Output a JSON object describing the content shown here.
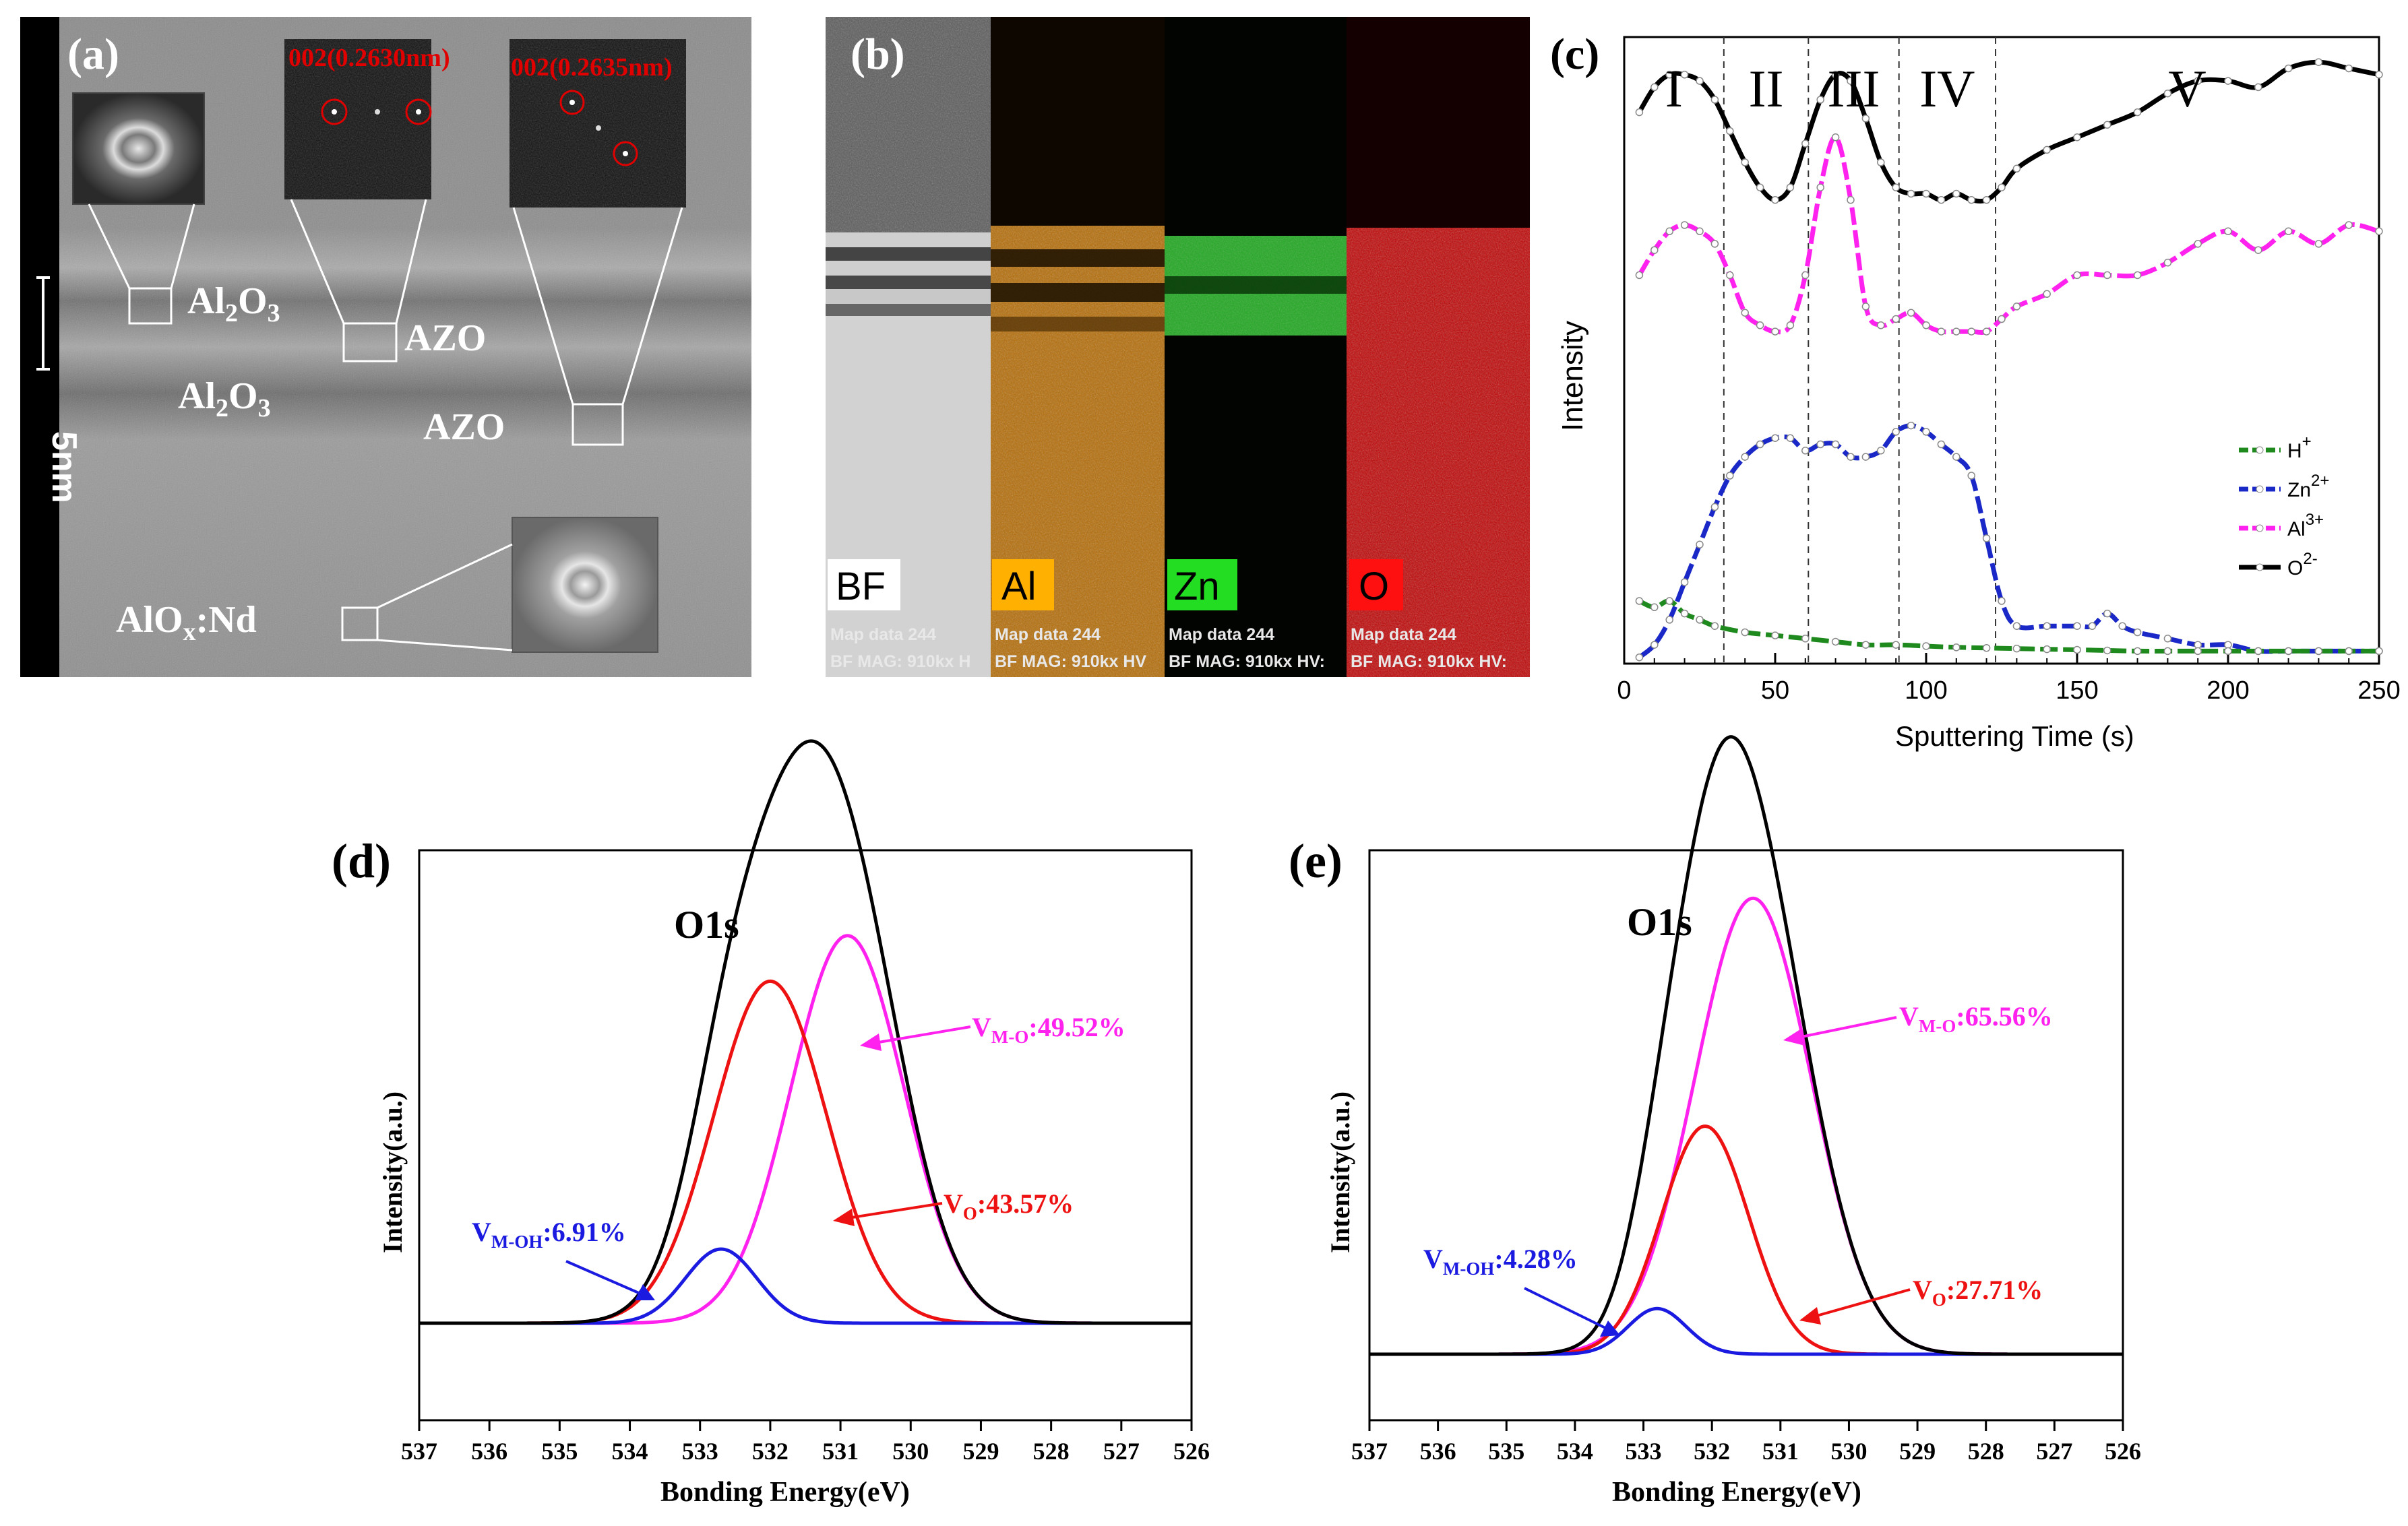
{
  "panel_a": {
    "label": "(a)",
    "scale_bar": "5nm",
    "fft_labels": [
      "002(0.2630nm)",
      "002(0.2635nm)"
    ],
    "layer_labels": {
      "al2o3_top": {
        "base": "Al",
        "sub1": "2",
        "mid": "O",
        "sub2": "3"
      },
      "al2o3_mid": {
        "base": "Al",
        "sub1": "2",
        "mid": "O",
        "sub2": "3"
      },
      "azo_top": "AZO",
      "azo_bottom": "AZO",
      "alox": {
        "base": "AlO",
        "sub": "x",
        "rest": ":Nd"
      }
    }
  },
  "panel_b": {
    "label": "(b)",
    "maps": [
      {
        "name": "BF",
        "caption1": "Map data 244",
        "caption2": "BF  MAG: 910kx  H",
        "color": "#bdbdbd"
      },
      {
        "name": "Al",
        "caption1": "Map data 244",
        "caption2": "BF  MAG: 910kx  HV",
        "color": "#c87400"
      },
      {
        "name": "Zn",
        "caption1": "Map data 244",
        "caption2": "BF  MAG: 910kx  HV:",
        "color": "#18c018"
      },
      {
        "name": "O",
        "caption1": "Map data 244",
        "caption2": "BF  MAG: 910kx  HV:",
        "color": "#d80000"
      }
    ]
  },
  "panel_c": {
    "label": "(c)",
    "regions": [
      "I",
      "II",
      "III",
      "IV",
      "V"
    ],
    "region_boundaries": [
      33,
      61,
      91,
      123
    ],
    "xlabel": "Sputtering Time (s)",
    "ylabel": "Intensity",
    "legend": [
      {
        "base": "H",
        "sup": "+",
        "color": "#1e8a1e"
      },
      {
        "base": "Zn",
        "sup": "2+",
        "color": "#1a28c8"
      },
      {
        "base": "Al",
        "sup": "3+",
        "color": "#ff22ee"
      },
      {
        "base": "O",
        "sup": "2-",
        "color": "#000000"
      }
    ]
  },
  "panel_d": {
    "label": "(d)",
    "peak_label": "O1s",
    "ylabel": "Intensity(a.u.)",
    "xlabel": "Bonding Energy(eV)",
    "annotations": [
      {
        "main": "V",
        "sub": "M-O",
        "value": ":49.52%",
        "color": "#ff22ee"
      },
      {
        "main": "V",
        "sub": "O",
        "value": ":43.57%",
        "color": "#ee1111"
      },
      {
        "main": "V",
        "sub": "M-OH",
        "value": ":6.91%",
        "color": "#1a1ae0"
      }
    ]
  },
  "panel_e": {
    "label": "(e)",
    "peak_label": "O1s",
    "ylabel": "Intensity(a.u.)",
    "xlabel": "Bonding Energy(eV)",
    "annotations": [
      {
        "main": "V",
        "sub": "M-O",
        "value": ":65.56%",
        "color": "#ff22ee"
      },
      {
        "main": "V",
        "sub": "O",
        "value": ":27.71%",
        "color": "#ee1111"
      },
      {
        "main": "V",
        "sub": "M-OH",
        "value": ":4.28%",
        "color": "#1a1ae0"
      }
    ]
  },
  "chart_data": [
    {
      "type": "line",
      "panel": "c",
      "xlabel": "Sputtering Time (s)",
      "ylabel": "Intensity",
      "xlim": [
        0,
        250
      ],
      "xticks": [
        0,
        50,
        100,
        150,
        200,
        250
      ],
      "ylim": [
        0,
        1
      ],
      "series": [
        {
          "name": "O2-",
          "color": "#000000",
          "x": [
            5,
            10,
            15,
            20,
            25,
            30,
            35,
            40,
            45,
            50,
            55,
            60,
            65,
            70,
            75,
            80,
            85,
            90,
            95,
            100,
            105,
            110,
            115,
            120,
            125,
            130,
            140,
            150,
            160,
            170,
            180,
            190,
            200,
            210,
            220,
            230,
            240,
            250
          ],
          "y": [
            0.88,
            0.92,
            0.94,
            0.94,
            0.93,
            0.9,
            0.85,
            0.8,
            0.76,
            0.74,
            0.76,
            0.83,
            0.9,
            0.94,
            0.93,
            0.87,
            0.8,
            0.76,
            0.75,
            0.75,
            0.74,
            0.75,
            0.74,
            0.74,
            0.76,
            0.79,
            0.82,
            0.84,
            0.86,
            0.88,
            0.91,
            0.93,
            0.93,
            0.92,
            0.95,
            0.96,
            0.95,
            0.94
          ]
        },
        {
          "name": "Al3+",
          "color": "#ff22ee",
          "x": [
            5,
            10,
            15,
            20,
            25,
            30,
            35,
            40,
            45,
            50,
            55,
            60,
            65,
            70,
            75,
            80,
            85,
            90,
            95,
            100,
            105,
            110,
            115,
            120,
            125,
            130,
            140,
            150,
            160,
            170,
            180,
            190,
            200,
            210,
            220,
            230,
            240,
            250
          ],
          "y": [
            0.62,
            0.66,
            0.69,
            0.7,
            0.69,
            0.67,
            0.62,
            0.56,
            0.54,
            0.53,
            0.54,
            0.62,
            0.76,
            0.84,
            0.74,
            0.57,
            0.54,
            0.55,
            0.56,
            0.54,
            0.53,
            0.53,
            0.53,
            0.53,
            0.55,
            0.57,
            0.59,
            0.62,
            0.62,
            0.62,
            0.64,
            0.67,
            0.69,
            0.66,
            0.69,
            0.67,
            0.7,
            0.69
          ]
        },
        {
          "name": "Zn2+",
          "color": "#1a28c8",
          "x": [
            5,
            10,
            15,
            20,
            25,
            30,
            35,
            40,
            45,
            50,
            55,
            60,
            65,
            70,
            75,
            80,
            85,
            90,
            95,
            100,
            105,
            110,
            115,
            120,
            125,
            130,
            140,
            150,
            155,
            160,
            165,
            170,
            180,
            190,
            200,
            210,
            220,
            230,
            240,
            250
          ],
          "y": [
            0.01,
            0.03,
            0.07,
            0.13,
            0.19,
            0.25,
            0.3,
            0.33,
            0.35,
            0.36,
            0.36,
            0.34,
            0.35,
            0.35,
            0.33,
            0.33,
            0.34,
            0.37,
            0.38,
            0.37,
            0.35,
            0.33,
            0.3,
            0.2,
            0.1,
            0.06,
            0.06,
            0.06,
            0.06,
            0.08,
            0.06,
            0.05,
            0.04,
            0.03,
            0.03,
            0.02,
            0.02,
            0.02,
            0.02,
            0.02
          ]
        },
        {
          "name": "H+",
          "color": "#1e8a1e",
          "x": [
            5,
            10,
            15,
            20,
            25,
            30,
            40,
            50,
            60,
            70,
            80,
            90,
            100,
            110,
            120,
            130,
            140,
            150,
            160,
            170,
            180,
            190,
            200,
            210,
            220,
            230,
            240,
            250
          ],
          "y": [
            0.1,
            0.09,
            0.1,
            0.08,
            0.07,
            0.06,
            0.05,
            0.045,
            0.04,
            0.035,
            0.03,
            0.03,
            0.028,
            0.026,
            0.025,
            0.024,
            0.023,
            0.022,
            0.021,
            0.02,
            0.02,
            0.02,
            0.02,
            0.02,
            0.02,
            0.02,
            0.02,
            0.02
          ]
        }
      ]
    },
    {
      "type": "line",
      "panel": "d",
      "xlabel": "Bonding Energy(eV)",
      "ylabel": "Intensity(a.u.)",
      "xlim": [
        537,
        526
      ],
      "xticks": [
        537,
        536,
        535,
        534,
        533,
        532,
        531,
        530,
        529,
        528,
        527,
        526
      ],
      "series": [
        {
          "name": "V_M-O",
          "color": "#ff22ee",
          "peak_center": 530.9,
          "fwhm": 1.9,
          "height": 0.68
        },
        {
          "name": "V_O",
          "color": "#ee1111",
          "peak_center": 532.0,
          "fwhm": 1.9,
          "height": 0.6
        },
        {
          "name": "V_M-OH",
          "color": "#1a1ae0",
          "peak_center": 532.7,
          "fwhm": 1.2,
          "height": 0.13
        },
        {
          "name": "O1s",
          "color": "#000000",
          "note": "sum"
        }
      ],
      "percentages": {
        "V_M-O": 49.52,
        "V_O": 43.57,
        "V_M-OH": 6.91
      }
    },
    {
      "type": "line",
      "panel": "e",
      "xlabel": "Bonding Energy(eV)",
      "ylabel": "Intensity(a.u.)",
      "xlim": [
        537,
        526
      ],
      "xticks": [
        537,
        536,
        535,
        534,
        533,
        532,
        531,
        530,
        529,
        528,
        527,
        526
      ],
      "series": [
        {
          "name": "V_M-O",
          "color": "#ff22ee",
          "peak_center": 531.4,
          "fwhm": 2.0,
          "height": 0.8
        },
        {
          "name": "V_O",
          "color": "#ee1111",
          "peak_center": 532.1,
          "fwhm": 1.5,
          "height": 0.4
        },
        {
          "name": "V_M-OH",
          "color": "#1a1ae0",
          "peak_center": 532.8,
          "fwhm": 1.0,
          "height": 0.08
        },
        {
          "name": "O1s",
          "color": "#000000",
          "note": "sum"
        }
      ],
      "percentages": {
        "V_M-O": 65.56,
        "V_O": 27.71,
        "V_M-OH": 4.28
      }
    }
  ]
}
